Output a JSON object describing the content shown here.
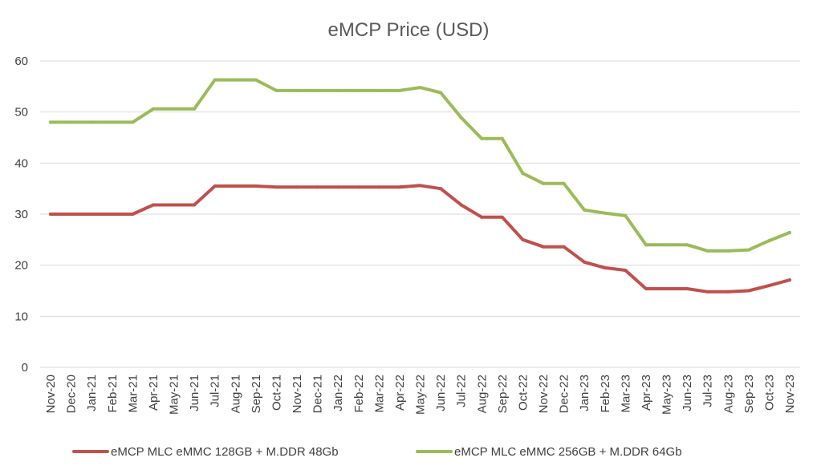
{
  "chart_data": {
    "type": "line",
    "title": "eMCP Price (USD)",
    "xlabel": "",
    "ylabel": "",
    "ylim": [
      0,
      60
    ],
    "y_ticks": [
      "0",
      "10",
      "20",
      "30",
      "40",
      "50",
      "60"
    ],
    "grid": true,
    "legend_position": "bottom",
    "categories": [
      "Nov-20",
      "Dec-20",
      "Jan-21",
      "Feb-21",
      "Mar-21",
      "Apr-21",
      "May-21",
      "Jun-21",
      "Jul-21",
      "Aug-21",
      "Sep-21",
      "Oct-21",
      "Nov-21",
      "Dec-21",
      "Jan-22",
      "Feb-22",
      "Mar-22",
      "Apr-22",
      "May-22",
      "Jun-22",
      "Jul-22",
      "Aug-22",
      "Sep-22",
      "Oct-22",
      "Nov-22",
      "Dec-22",
      "Jan-23",
      "Feb-23",
      "Mar-23",
      "Apr-23",
      "May-23",
      "Jun-23",
      "Jul-23",
      "Aug-23",
      "Sep-23",
      "Oct-23",
      "Nov-23"
    ],
    "series": [
      {
        "name": "eMCP MLC eMMC 128GB + M.DDR 48Gb",
        "color": "#c0504d",
        "values": [
          30,
          30,
          30,
          30,
          30,
          31.8,
          31.8,
          31.8,
          35.5,
          35.5,
          35.5,
          35.3,
          35.3,
          35.3,
          35.3,
          35.3,
          35.3,
          35.3,
          35.6,
          35,
          31.8,
          29.4,
          29.4,
          25,
          23.6,
          23.6,
          20.6,
          19.5,
          19,
          15.4,
          15.4,
          15.4,
          14.8,
          14.8,
          15,
          16,
          17.1
        ]
      },
      {
        "name": "eMCP MLC eMMC 256GB + M.DDR 64Gb",
        "color": "#9bbb59",
        "values": [
          48,
          48,
          48,
          48,
          48,
          50.6,
          50.6,
          50.6,
          56.3,
          56.3,
          56.3,
          54.2,
          54.2,
          54.2,
          54.2,
          54.2,
          54.2,
          54.2,
          54.8,
          53.8,
          48.9,
          44.8,
          44.8,
          38,
          36,
          36,
          30.8,
          30.2,
          29.7,
          24,
          24,
          24,
          22.8,
          22.8,
          23,
          24.8,
          26.4
        ]
      }
    ]
  }
}
